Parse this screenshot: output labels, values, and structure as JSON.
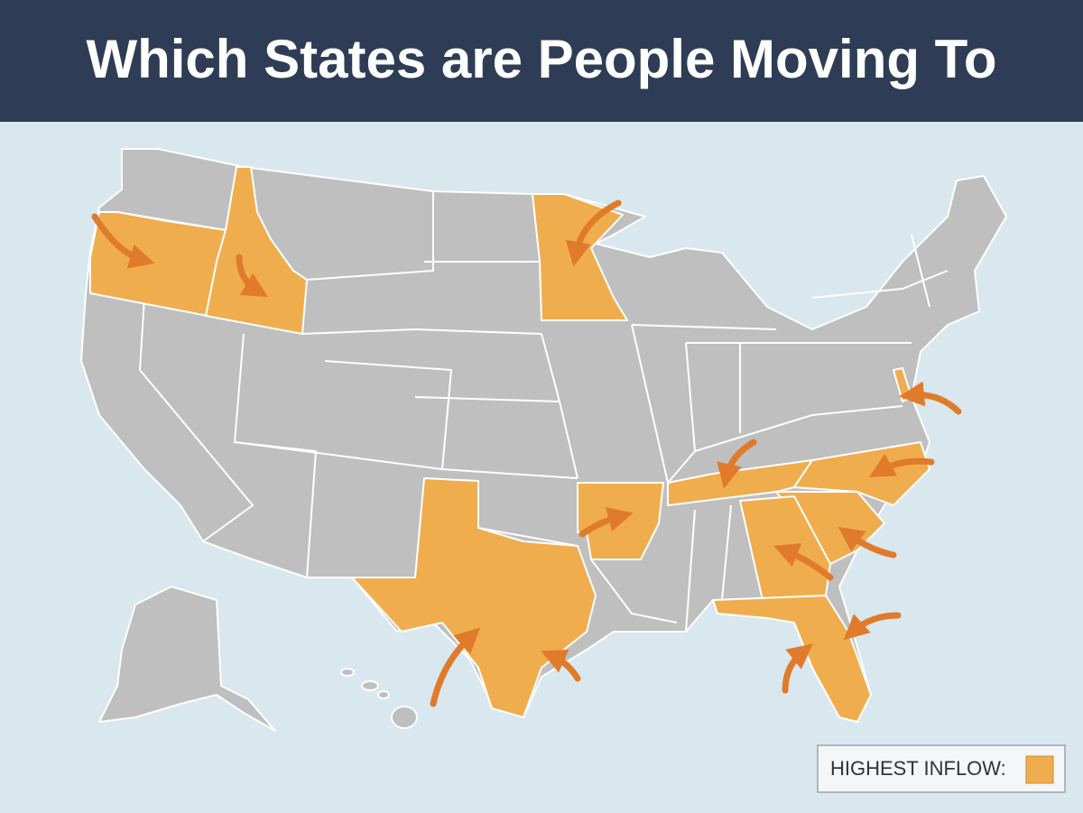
{
  "header": {
    "title": "Which States are People Moving To"
  },
  "legend": {
    "label": "HIGHEST INFLOW:"
  }
}
